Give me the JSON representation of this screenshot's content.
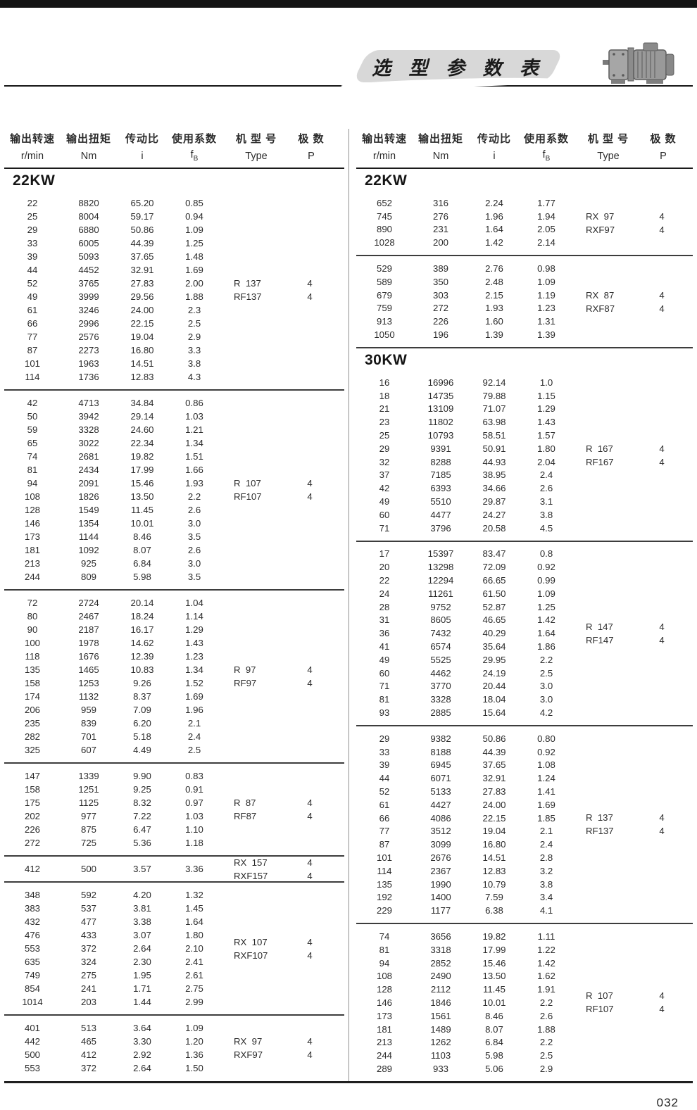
{
  "page": {
    "title": "选 型 参 数 表",
    "page_number": "032"
  },
  "colors": {
    "badge_bg": "#d8d8d8",
    "topbar": "#141414",
    "rule": "#1a1a1a"
  },
  "columns": [
    {
      "label": "输出转速",
      "unit": "r/min"
    },
    {
      "label": "输出扭矩",
      "unit": "Nm"
    },
    {
      "label": "传动比",
      "unit": "i"
    },
    {
      "label": "使用系数",
      "unit": "f",
      "unit_sub": "B"
    },
    {
      "label": "机 型 号",
      "unit": "Type"
    },
    {
      "label": "极 数",
      "unit": "P"
    }
  ],
  "left_column": {
    "sections": [
      {
        "title": "22KW",
        "blocks": [
          {
            "rows": [
              [
                "22",
                "8820",
                "65.20",
                "0.85"
              ],
              [
                "25",
                "8004",
                "59.17",
                "0.94"
              ],
              [
                "29",
                "6880",
                "50.86",
                "1.09"
              ],
              [
                "33",
                "6005",
                "44.39",
                "1.25"
              ],
              [
                "39",
                "5093",
                "37.65",
                "1.48"
              ],
              [
                "44",
                "4452",
                "32.91",
                "1.69"
              ],
              [
                "52",
                "3765",
                "27.83",
                "2.00"
              ],
              [
                "49",
                "3999",
                "29.56",
                "1.88"
              ],
              [
                "61",
                "3246",
                "24.00",
                "2.3"
              ],
              [
                "66",
                "2996",
                "22.15",
                "2.5"
              ],
              [
                "77",
                "2576",
                "19.04",
                "2.9"
              ],
              [
                "87",
                "2273",
                "16.80",
                "3.3"
              ],
              [
                "101",
                "1963",
                "14.51",
                "3.8"
              ],
              [
                "114",
                "1736",
                "12.83",
                "4.3"
              ]
            ],
            "models": [
              {
                "type": "R  137",
                "poles": "4"
              },
              {
                "type": "RF137",
                "poles": "4"
              }
            ]
          },
          {
            "rows": [
              [
                "42",
                "4713",
                "34.84",
                "0.86"
              ],
              [
                "50",
                "3942",
                "29.14",
                "1.03"
              ],
              [
                "59",
                "3328",
                "24.60",
                "1.21"
              ],
              [
                "65",
                "3022",
                "22.34",
                "1.34"
              ],
              [
                "74",
                "2681",
                "19.82",
                "1.51"
              ],
              [
                "81",
                "2434",
                "17.99",
                "1.66"
              ],
              [
                "94",
                "2091",
                "15.46",
                "1.93"
              ],
              [
                "108",
                "1826",
                "13.50",
                "2.2"
              ],
              [
                "128",
                "1549",
                "11.45",
                "2.6"
              ],
              [
                "146",
                "1354",
                "10.01",
                "3.0"
              ],
              [
                "173",
                "1144",
                "8.46",
                "3.5"
              ],
              [
                "181",
                "1092",
                "8.07",
                "2.6"
              ],
              [
                "213",
                "925",
                "6.84",
                "3.0"
              ],
              [
                "244",
                "809",
                "5.98",
                "3.5"
              ]
            ],
            "models": [
              {
                "type": "R  107",
                "poles": "4"
              },
              {
                "type": "RF107",
                "poles": "4"
              }
            ]
          },
          {
            "rows": [
              [
                "72",
                "2724",
                "20.14",
                "1.04"
              ],
              [
                "80",
                "2467",
                "18.24",
                "1.14"
              ],
              [
                "90",
                "2187",
                "16.17",
                "1.29"
              ],
              [
                "100",
                "1978",
                "14.62",
                "1.43"
              ],
              [
                "118",
                "1676",
                "12.39",
                "1.23"
              ],
              [
                "135",
                "1465",
                "10.83",
                "1.34"
              ],
              [
                "158",
                "1253",
                "9.26",
                "1.52"
              ],
              [
                "174",
                "1132",
                "8.37",
                "1.69"
              ],
              [
                "206",
                "959",
                "7.09",
                "1.96"
              ],
              [
                "235",
                "839",
                "6.20",
                "2.1"
              ],
              [
                "282",
                "701",
                "5.18",
                "2.4"
              ],
              [
                "325",
                "607",
                "4.49",
                "2.5"
              ]
            ],
            "models": [
              {
                "type": "R  97",
                "poles": "4"
              },
              {
                "type": "RF97",
                "poles": "4"
              }
            ]
          },
          {
            "rows": [
              [
                "147",
                "1339",
                "9.90",
                "0.83"
              ],
              [
                "158",
                "1251",
                "9.25",
                "0.91"
              ],
              [
                "175",
                "1125",
                "8.32",
                "0.97"
              ],
              [
                "202",
                "977",
                "7.22",
                "1.03"
              ],
              [
                "226",
                "875",
                "6.47",
                "1.10"
              ],
              [
                "272",
                "725",
                "5.36",
                "1.18"
              ]
            ],
            "models": [
              {
                "type": "R  87",
                "poles": "4"
              },
              {
                "type": "RF87",
                "poles": "4"
              }
            ]
          },
          {
            "rows": [
              [
                "412",
                "500",
                "3.57",
                "3.36"
              ]
            ],
            "models": [
              {
                "type": "RX  157",
                "poles": "4"
              },
              {
                "type": "RXF157",
                "poles": "4"
              }
            ]
          },
          {
            "rows": [
              [
                "348",
                "592",
                "4.20",
                "1.32"
              ],
              [
                "383",
                "537",
                "3.81",
                "1.45"
              ],
              [
                "432",
                "477",
                "3.38",
                "1.64"
              ],
              [
                "476",
                "433",
                "3.07",
                "1.80"
              ],
              [
                "553",
                "372",
                "2.64",
                "2.10"
              ],
              [
                "635",
                "324",
                "2.30",
                "2.41"
              ],
              [
                "749",
                "275",
                "1.95",
                "2.61"
              ],
              [
                "854",
                "241",
                "1.71",
                "2.75"
              ],
              [
                "1014",
                "203",
                "1.44",
                "2.99"
              ]
            ],
            "models": [
              {
                "type": "RX  107",
                "poles": "4"
              },
              {
                "type": "RXF107",
                "poles": "4"
              }
            ]
          },
          {
            "rows": [
              [
                "401",
                "513",
                "3.64",
                "1.09"
              ],
              [
                "442",
                "465",
                "3.30",
                "1.20"
              ],
              [
                "500",
                "412",
                "2.92",
                "1.36"
              ],
              [
                "553",
                "372",
                "2.64",
                "1.50"
              ]
            ],
            "models": [
              {
                "type": "RX  97",
                "poles": "4"
              },
              {
                "type": "RXF97",
                "poles": "4"
              }
            ]
          }
        ]
      }
    ]
  },
  "right_column": {
    "sections": [
      {
        "title": "22KW",
        "blocks": [
          {
            "rows": [
              [
                "652",
                "316",
                "2.24",
                "1.77"
              ],
              [
                "745",
                "276",
                "1.96",
                "1.94"
              ],
              [
                "890",
                "231",
                "1.64",
                "2.05"
              ],
              [
                "1028",
                "200",
                "1.42",
                "2.14"
              ]
            ],
            "models": [
              {
                "type": "RX  97",
                "poles": "4"
              },
              {
                "type": "RXF97",
                "poles": "4"
              }
            ]
          },
          {
            "rows": [
              [
                "529",
                "389",
                "2.76",
                "0.98"
              ],
              [
                "589",
                "350",
                "2.48",
                "1.09"
              ],
              [
                "679",
                "303",
                "2.15",
                "1.19"
              ],
              [
                "759",
                "272",
                "1.93",
                "1.23"
              ],
              [
                "913",
                "226",
                "1.60",
                "1.31"
              ],
              [
                "1050",
                "196",
                "1.39",
                "1.39"
              ]
            ],
            "models": [
              {
                "type": "RX  87",
                "poles": "4"
              },
              {
                "type": "RXF87",
                "poles": "4"
              }
            ]
          }
        ]
      },
      {
        "title": "30KW",
        "blocks": [
          {
            "rows": [
              [
                "16",
                "16996",
                "92.14",
                "1.0"
              ],
              [
                "18",
                "14735",
                "79.88",
                "1.15"
              ],
              [
                "21",
                "13109",
                "71.07",
                "1.29"
              ],
              [
                "23",
                "11802",
                "63.98",
                "1.43"
              ],
              [
                "25",
                "10793",
                "58.51",
                "1.57"
              ],
              [
                "29",
                "9391",
                "50.91",
                "1.80"
              ],
              [
                "32",
                "8288",
                "44.93",
                "2.04"
              ],
              [
                "37",
                "7185",
                "38.95",
                "2.4"
              ],
              [
                "42",
                "6393",
                "34.66",
                "2.6"
              ],
              [
                "49",
                "5510",
                "29.87",
                "3.1"
              ],
              [
                "60",
                "4477",
                "24.27",
                "3.8"
              ],
              [
                "71",
                "3796",
                "20.58",
                "4.5"
              ]
            ],
            "models": [
              {
                "type": "R  167",
                "poles": "4"
              },
              {
                "type": "RF167",
                "poles": "4"
              }
            ]
          },
          {
            "rows": [
              [
                "17",
                "15397",
                "83.47",
                "0.8"
              ],
              [
                "20",
                "13298",
                "72.09",
                "0.92"
              ],
              [
                "22",
                "12294",
                "66.65",
                "0.99"
              ],
              [
                "24",
                "11261",
                "61.50",
                "1.09"
              ],
              [
                "28",
                "9752",
                "52.87",
                "1.25"
              ],
              [
                "31",
                "8605",
                "46.65",
                "1.42"
              ],
              [
                "36",
                "7432",
                "40.29",
                "1.64"
              ],
              [
                "41",
                "6574",
                "35.64",
                "1.86"
              ],
              [
                "49",
                "5525",
                "29.95",
                "2.2"
              ],
              [
                "60",
                "4462",
                "24.19",
                "2.5"
              ],
              [
                "71",
                "3770",
                "20.44",
                "3.0"
              ],
              [
                "81",
                "3328",
                "18.04",
                "3.0"
              ],
              [
                "93",
                "2885",
                "15.64",
                "4.2"
              ]
            ],
            "models": [
              {
                "type": "R  147",
                "poles": "4"
              },
              {
                "type": "RF147",
                "poles": "4"
              }
            ]
          },
          {
            "rows": [
              [
                "29",
                "9382",
                "50.86",
                "0.80"
              ],
              [
                "33",
                "8188",
                "44.39",
                "0.92"
              ],
              [
                "39",
                "6945",
                "37.65",
                "1.08"
              ],
              [
                "44",
                "6071",
                "32.91",
                "1.24"
              ],
              [
                "52",
                "5133",
                "27.83",
                "1.41"
              ],
              [
                "61",
                "4427",
                "24.00",
                "1.69"
              ],
              [
                "66",
                "4086",
                "22.15",
                "1.85"
              ],
              [
                "77",
                "3512",
                "19.04",
                "2.1"
              ],
              [
                "87",
                "3099",
                "16.80",
                "2.4"
              ],
              [
                "101",
                "2676",
                "14.51",
                "2.8"
              ],
              [
                "114",
                "2367",
                "12.83",
                "3.2"
              ],
              [
                "135",
                "1990",
                "10.79",
                "3.8"
              ],
              [
                "192",
                "1400",
                "7.59",
                "3.4"
              ],
              [
                "229",
                "1177",
                "6.38",
                "4.1"
              ]
            ],
            "models": [
              {
                "type": "R  137",
                "poles": "4"
              },
              {
                "type": "RF137",
                "poles": "4"
              }
            ]
          },
          {
            "rows": [
              [
                "74",
                "3656",
                "19.82",
                "1.11"
              ],
              [
                "81",
                "3318",
                "17.99",
                "1.22"
              ],
              [
                "94",
                "2852",
                "15.46",
                "1.42"
              ],
              [
                "108",
                "2490",
                "13.50",
                "1.62"
              ],
              [
                "128",
                "2112",
                "11.45",
                "1.91"
              ],
              [
                "146",
                "1846",
                "10.01",
                "2.2"
              ],
              [
                "173",
                "1561",
                "8.46",
                "2.6"
              ],
              [
                "181",
                "1489",
                "8.07",
                "1.88"
              ],
              [
                "213",
                "1262",
                "6.84",
                "2.2"
              ],
              [
                "244",
                "1103",
                "5.98",
                "2.5"
              ],
              [
                "289",
                "933",
                "5.06",
                "2.9"
              ]
            ],
            "models": [
              {
                "type": "R  107",
                "poles": "4"
              },
              {
                "type": "RF107",
                "poles": "4"
              }
            ]
          }
        ]
      }
    ]
  }
}
